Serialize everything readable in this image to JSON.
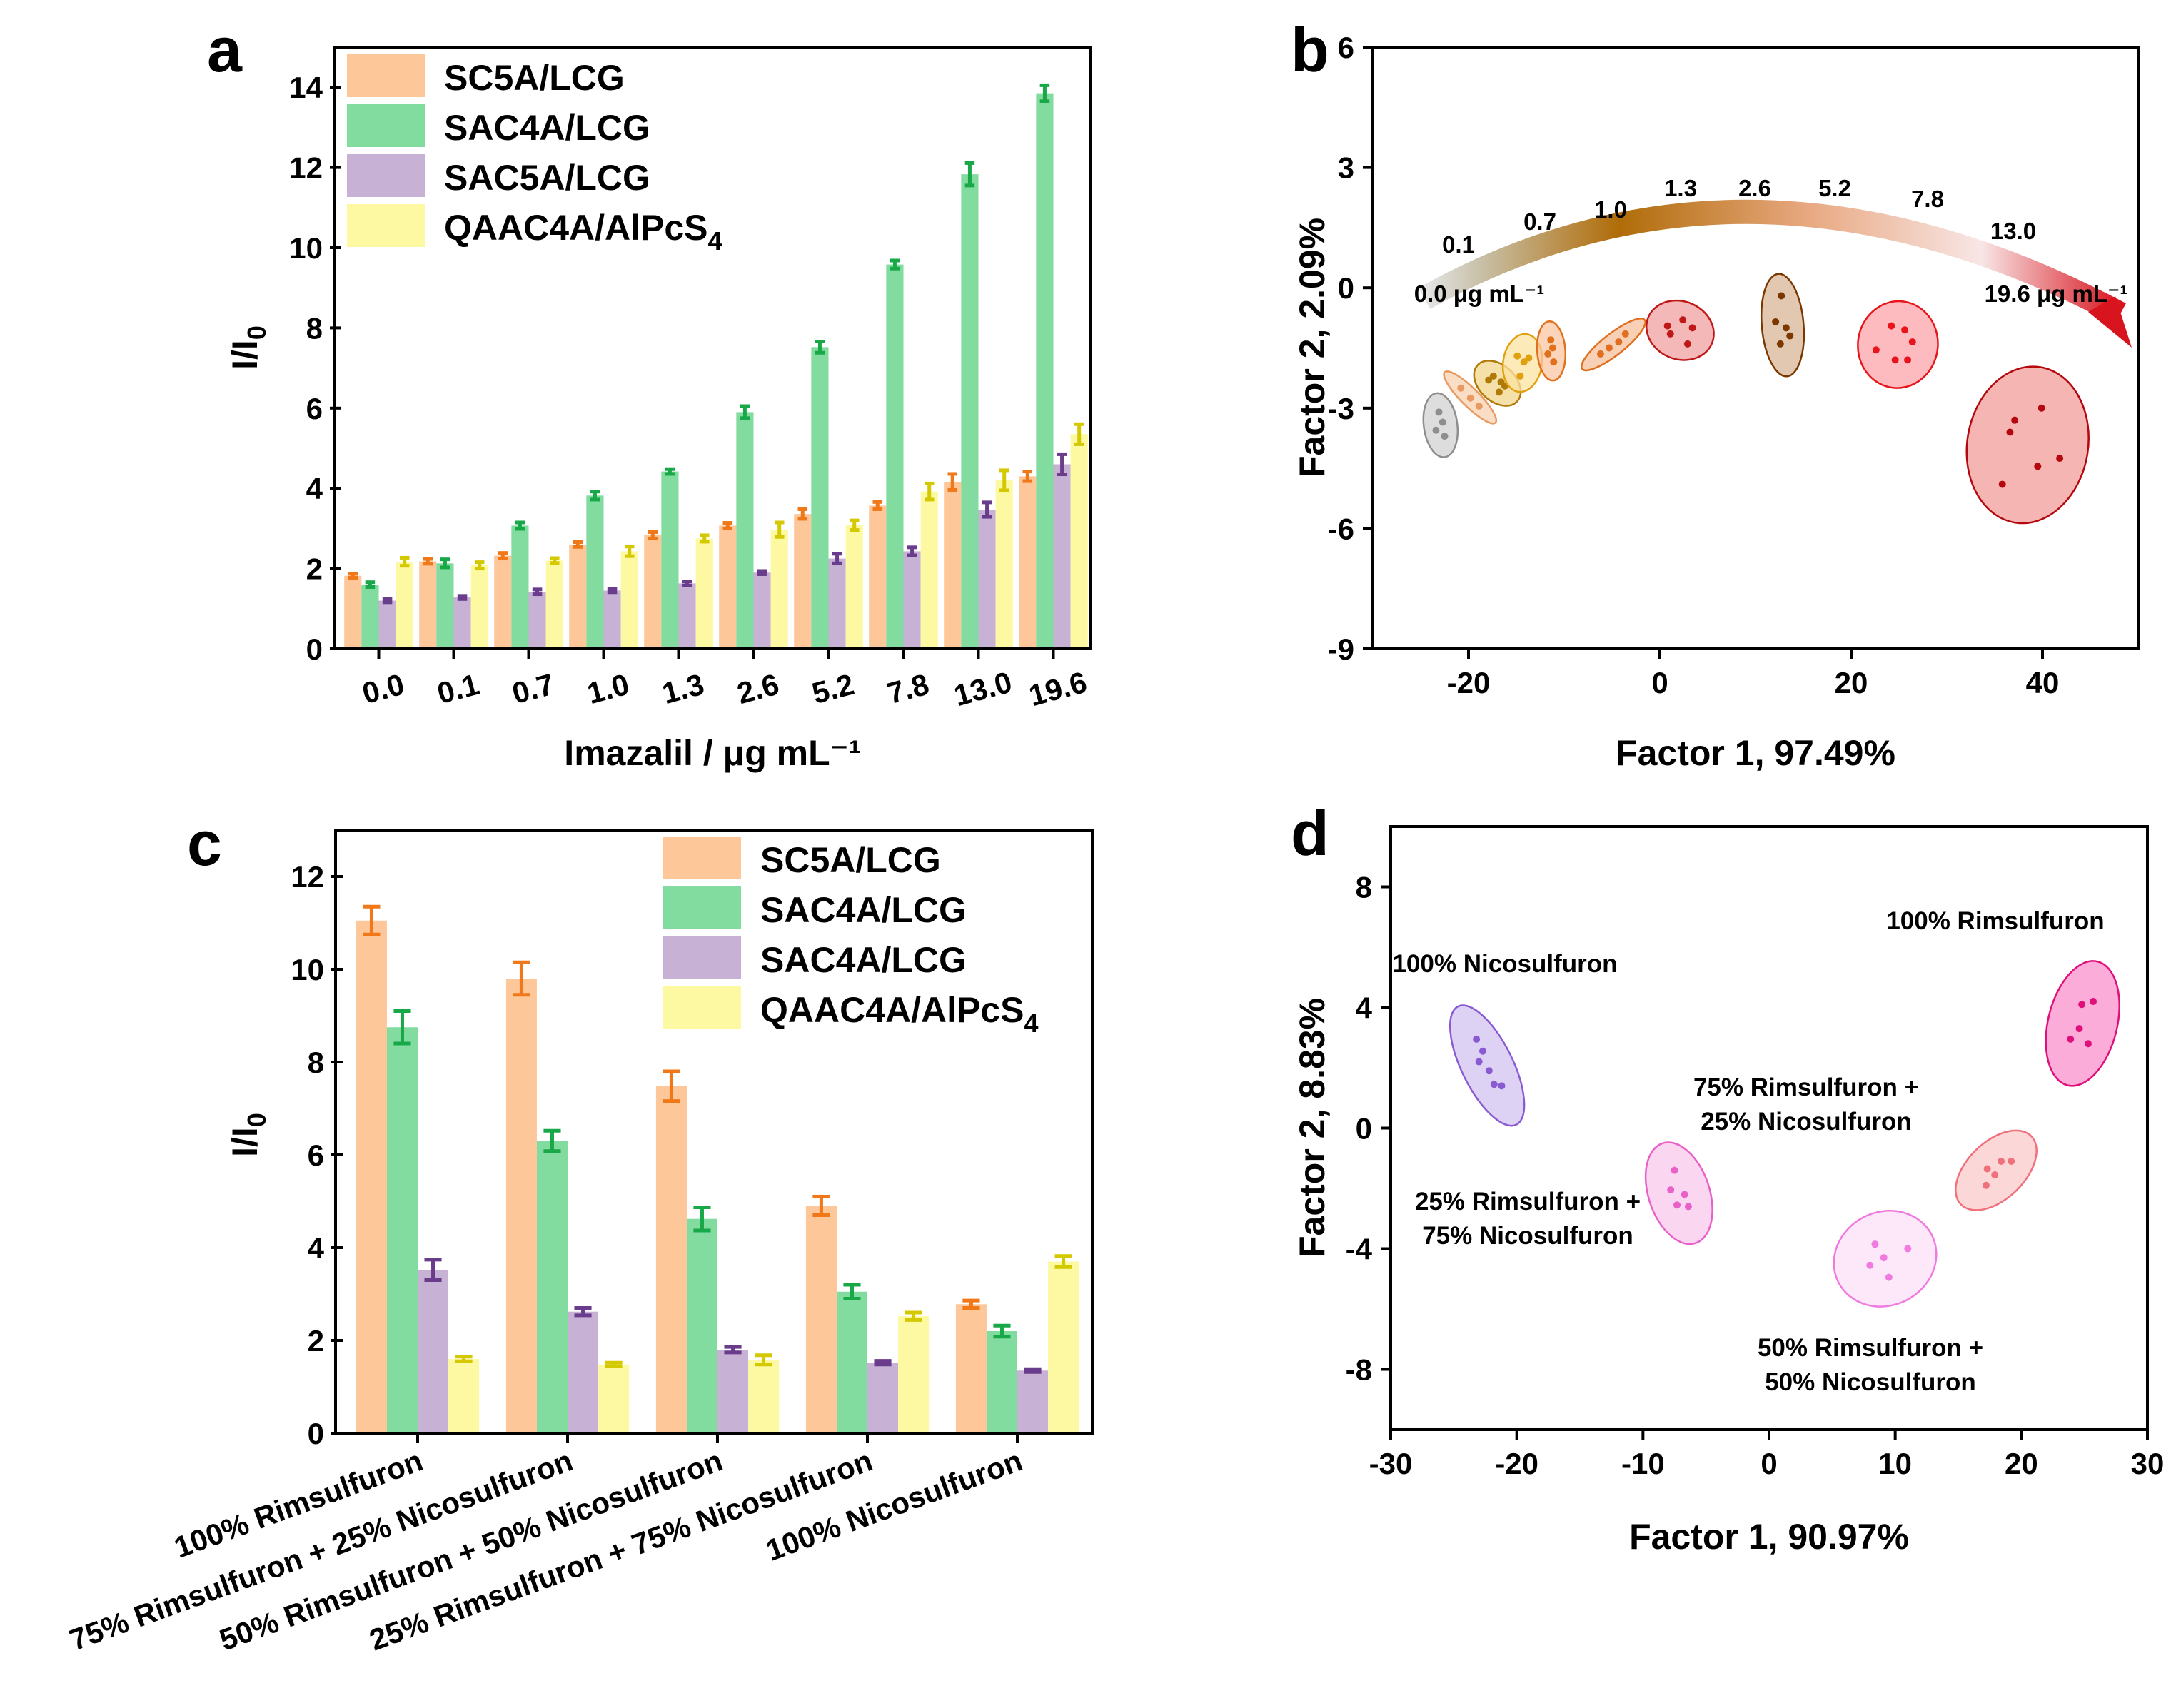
{
  "panel_labels": [
    "a",
    "b",
    "c",
    "d"
  ],
  "chart_data": [
    {
      "id": "a",
      "type": "bar",
      "title": "",
      "xlabel": "Imazalil / μg mL⁻¹",
      "ylabel": "I/I0",
      "ylim": [
        0,
        15
      ],
      "yticks": [
        0,
        2,
        4,
        6,
        8,
        10,
        12,
        14
      ],
      "categories": [
        "0.0",
        "0.1",
        "0.7",
        "1.0",
        "1.3",
        "2.6",
        "5.2",
        "7.8",
        "13.0",
        "19.6"
      ],
      "series": [
        {
          "name": "SC5A/LCG",
          "values": [
            1.82,
            2.18,
            2.32,
            2.6,
            2.83,
            3.07,
            3.36,
            3.57,
            4.16,
            4.3
          ],
          "errors": [
            0.05,
            0.06,
            0.07,
            0.06,
            0.08,
            0.07,
            0.12,
            0.09,
            0.2,
            0.12
          ]
        },
        {
          "name": "SAC4A/LCG",
          "values": [
            1.6,
            2.13,
            3.07,
            3.82,
            4.42,
            5.9,
            7.52,
            9.58,
            11.83,
            13.85
          ],
          "errors": [
            0.06,
            0.1,
            0.08,
            0.1,
            0.06,
            0.15,
            0.14,
            0.1,
            0.28,
            0.2
          ]
        },
        {
          "name": "SAC5A/LCG",
          "values": [
            1.2,
            1.28,
            1.42,
            1.45,
            1.63,
            1.9,
            2.25,
            2.43,
            3.47,
            4.6
          ],
          "errors": [
            0.04,
            0.04,
            0.06,
            0.04,
            0.05,
            0.04,
            0.12,
            0.1,
            0.18,
            0.25
          ]
        },
        {
          "name": "QAAC4A/AlPcS4",
          "values": [
            2.17,
            2.08,
            2.2,
            2.43,
            2.75,
            2.97,
            3.08,
            3.92,
            4.2,
            5.35
          ],
          "errors": [
            0.1,
            0.08,
            0.06,
            0.12,
            0.08,
            0.18,
            0.12,
            0.2,
            0.25,
            0.25
          ]
        }
      ],
      "legend_labels": [
        "SC5A/LCG",
        "SAC4A/LCG",
        "SAC5A/LCG",
        "QAAC4A/AlPcS"
      ],
      "legend_subscript": "4",
      "legend_position": "top-left"
    },
    {
      "id": "b",
      "type": "scatter",
      "xlabel": "Factor 1, 97.49%",
      "ylabel": "Factor 2, 2.09%",
      "xlim": [
        -30,
        50
      ],
      "ylim": [
        -9,
        6
      ],
      "xticks": [
        -20,
        0,
        20,
        40
      ],
      "yticks": [
        -9,
        -6,
        -3,
        0,
        3,
        6
      ],
      "groups": [
        {
          "label": "0.0 μg mL⁻¹",
          "color": "#8e8e8e",
          "fill": "#d2d2d2",
          "points": [
            [
              -23.1,
              -3.1
            ],
            [
              -22.7,
              -3.35
            ],
            [
              -23.4,
              -3.55
            ],
            [
              -22.5,
              -3.7
            ]
          ]
        },
        {
          "label": "0.1",
          "color": "#e89a60",
          "fill": "#f8d2b2",
          "points": [
            [
              -20.8,
              -2.5
            ],
            [
              -19.8,
              -2.75
            ],
            [
              -18.9,
              -2.95
            ]
          ]
        },
        {
          "label": "0.7",
          "color": "#b07a08",
          "fill": "#f2d68c",
          "points": [
            [
              -17.4,
              -2.2
            ],
            [
              -16.6,
              -2.35
            ],
            [
              -16.2,
              -2.45
            ],
            [
              -17.9,
              -2.3
            ],
            [
              -16.8,
              -2.6
            ]
          ]
        },
        {
          "label": "1.0",
          "color": "#e0a010",
          "fill": "#fbe3a2",
          "points": [
            [
              -14.9,
              -1.7
            ],
            [
              -14.2,
              -1.85
            ],
            [
              -14.6,
              -2.2
            ],
            [
              -13.7,
              -1.75
            ]
          ]
        },
        {
          "label": "1.3",
          "color": "#e0701c",
          "fill": "#f9c6a2",
          "points": [
            [
              -11.4,
              -1.3
            ],
            [
              -11.2,
              -1.5
            ],
            [
              -11.7,
              -1.65
            ],
            [
              -11.1,
              -1.85
            ]
          ]
        },
        {
          "label": "2.6",
          "color": "#e06f20",
          "fill": "#f6c09c",
          "points": [
            [
              -6.2,
              -1.65
            ],
            [
              -5.3,
              -1.5
            ],
            [
              -4.3,
              -1.35
            ],
            [
              -3.6,
              -1.15
            ]
          ]
        },
        {
          "label": "5.2",
          "color": "#c01818",
          "fill": "#f2a0a0",
          "points": [
            [
              0.8,
              -0.95
            ],
            [
              1.1,
              -1.15
            ],
            [
              2.4,
              -0.8
            ],
            [
              3.4,
              -1.0
            ],
            [
              2.9,
              -1.4
            ]
          ]
        },
        {
          "label": "7.8",
          "color": "#7a3800",
          "fill": "#d8b596",
          "points": [
            [
              12.7,
              -0.2
            ],
            [
              12.1,
              -0.85
            ],
            [
              13.2,
              -1.0
            ],
            [
              12.6,
              -1.4
            ],
            [
              13.6,
              -1.2
            ]
          ]
        },
        {
          "label": "13.0",
          "color": "#e8141a",
          "fill": "#fca3aa",
          "points": [
            [
              22.6,
              -1.55
            ],
            [
              24.2,
              -0.95
            ],
            [
              25.6,
              -1.05
            ],
            [
              26.4,
              -1.35
            ],
            [
              24.6,
              -1.8
            ],
            [
              25.9,
              -1.8
            ]
          ]
        },
        {
          "label": "19.6 μg mL⁻¹",
          "color": "#b4080e",
          "fill": "#f09c9a",
          "points": [
            [
              36.6,
              -3.6
            ],
            [
              37.1,
              -3.3
            ],
            [
              39.9,
              -3.0
            ],
            [
              39.5,
              -4.45
            ],
            [
              41.8,
              -4.25
            ],
            [
              35.8,
              -4.9
            ]
          ]
        }
      ],
      "arrow_labels": [
        "0.0 μg mL⁻¹",
        "0.1",
        "0.7",
        "1.0",
        "1.3",
        "2.6",
        "5.2",
        "7.8",
        "13.0",
        "19.6 μg mL⁻¹"
      ]
    },
    {
      "id": "c",
      "type": "bar",
      "xlabel": "",
      "ylabel": "I/I0",
      "ylim": [
        0,
        13
      ],
      "yticks": [
        0,
        2,
        4,
        6,
        8,
        10,
        12
      ],
      "categories": [
        "100% Rimsulfuron",
        "75% Rimsulfuron + 25% Nicosulfuron",
        "50% Rimsulfuron + 50% Nicosulfuron",
        "25% Rimsulfuron + 75% Nicosulfuron",
        "100% Nicosulfuron"
      ],
      "series": [
        {
          "name": "SC5A/LCG",
          "values": [
            11.05,
            9.8,
            7.48,
            4.9,
            2.78
          ],
          "errors": [
            0.3,
            0.35,
            0.32,
            0.2,
            0.08
          ]
        },
        {
          "name": "SAC4A/LCG",
          "values": [
            8.75,
            6.3,
            4.62,
            3.05,
            2.2
          ],
          "errors": [
            0.35,
            0.22,
            0.25,
            0.15,
            0.12
          ]
        },
        {
          "name": "SAC4A/LCG",
          "values": [
            3.52,
            2.62,
            1.8,
            1.52,
            1.35
          ],
          "errors": [
            0.22,
            0.08,
            0.06,
            0.04,
            0.03
          ]
        },
        {
          "name": "QAAC4A/AlPcS4",
          "values": [
            1.6,
            1.48,
            1.58,
            2.52,
            3.7
          ],
          "errors": [
            0.05,
            0.04,
            0.1,
            0.08,
            0.12
          ]
        }
      ],
      "legend_labels": [
        "SC5A/LCG",
        "SAC4A/LCG",
        "SAC4A/LCG",
        "QAAC4A/AlPcS"
      ],
      "legend_subscript": "4",
      "legend_position": "top-right"
    },
    {
      "id": "d",
      "type": "scatter",
      "xlabel": "Factor 1, 90.97%",
      "ylabel": "Factor 2, 8.83%",
      "xlim": [
        -30,
        30
      ],
      "ylim": [
        -10,
        10
      ],
      "xticks": [
        -30,
        -20,
        -10,
        0,
        10,
        20,
        30
      ],
      "yticks": [
        -8,
        -4,
        0,
        4,
        8
      ],
      "groups": [
        {
          "label_lines": [
            "100% Nicosulfuron"
          ],
          "color": "#8a5ad2",
          "fill": "#d2c3ef",
          "points": [
            [
              -23.2,
              2.95
            ],
            [
              -22.7,
              2.55
            ],
            [
              -23.0,
              2.2
            ],
            [
              -21.8,
              1.45
            ],
            [
              -21.2,
              1.4
            ],
            [
              -22.2,
              1.9
            ]
          ]
        },
        {
          "label_lines": [
            "25% Rimsulfuron +",
            "75% Nicosulfuron"
          ],
          "color": "#e860c8",
          "fill": "#f8c8ec",
          "points": [
            [
              -7.5,
              -1.4
            ],
            [
              -7.8,
              -2.05
            ],
            [
              -6.7,
              -2.2
            ],
            [
              -7.3,
              -2.55
            ],
            [
              -6.4,
              -2.6
            ]
          ]
        },
        {
          "label_lines": [
            "50% Rimsulfuron +",
            "50% Nicosulfuron"
          ],
          "color": "#f07ae0",
          "fill": "#fbe0f6",
          "points": [
            [
              8.4,
              -3.85
            ],
            [
              9.1,
              -4.3
            ],
            [
              8.0,
              -4.55
            ],
            [
              11.0,
              -4.0
            ],
            [
              9.5,
              -4.95
            ]
          ]
        },
        {
          "label_lines": [
            "75% Rimsulfuron +",
            "25% Nicosulfuron"
          ],
          "color": "#f0707c",
          "fill": "#fbcaca",
          "points": [
            [
              18.4,
              -1.1
            ],
            [
              19.2,
              -1.1
            ],
            [
              17.3,
              -1.35
            ],
            [
              17.9,
              -1.55
            ],
            [
              17.2,
              -1.9
            ]
          ]
        },
        {
          "label_lines": [
            "100% Rimsulfuron"
          ],
          "color": "#e0107a",
          "fill": "#fb90cc",
          "points": [
            [
              24.8,
              4.1
            ],
            [
              25.7,
              4.2
            ],
            [
              24.6,
              3.3
            ],
            [
              25.3,
              2.8
            ],
            [
              23.9,
              2.95
            ]
          ]
        }
      ]
    }
  ]
}
